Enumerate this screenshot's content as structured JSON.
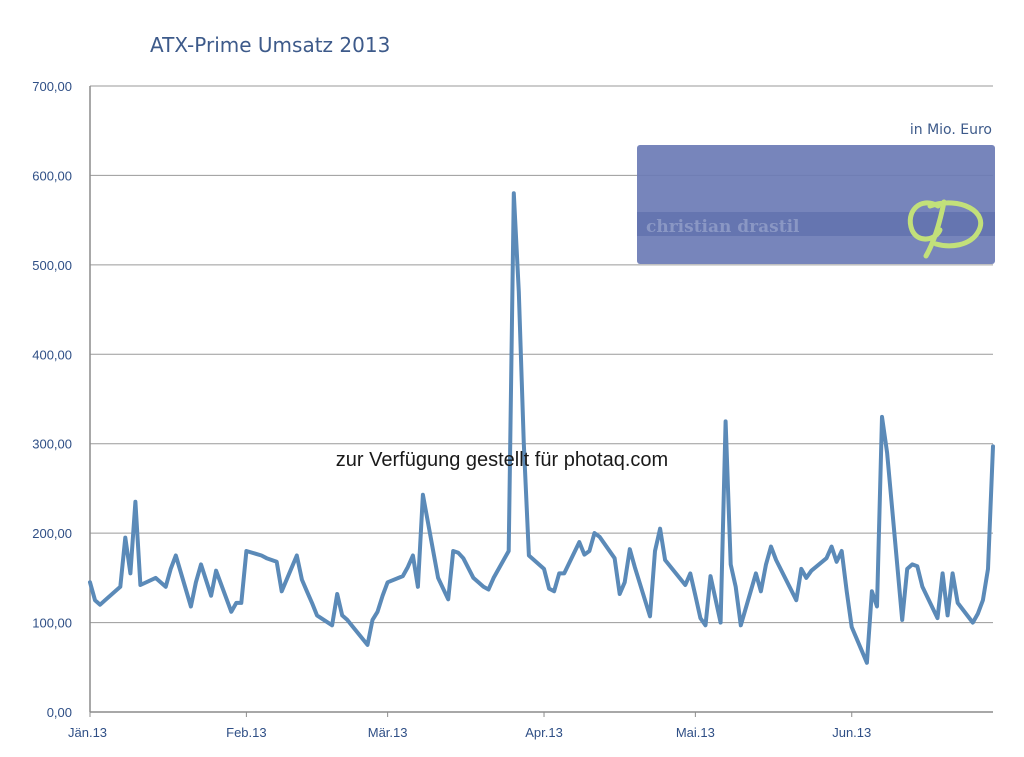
{
  "chart_data": {
    "type": "line",
    "title": "ATX-Prime Umsatz 2013",
    "unit_note": "in Mio. Euro",
    "credit": "zur Verfügung gestellt für photaq.com",
    "brand": "christian drastil",
    "ylim": [
      0,
      700
    ],
    "y_ticks": [
      "0,00",
      "100,00",
      "200,00",
      "300,00",
      "400,00",
      "500,00",
      "600,00",
      "700,00"
    ],
    "x_range": [
      0,
      179
    ],
    "x_ticks": [
      {
        "label": "Jän.13",
        "x": 0
      },
      {
        "label": "Feb.13",
        "x": 31
      },
      {
        "label": "Mär.13",
        "x": 59
      },
      {
        "label": "Apr.13",
        "x": 90
      },
      {
        "label": "Mai.13",
        "x": 120
      },
      {
        "label": "Jun.13",
        "x": 151
      }
    ],
    "grid": true,
    "colors": {
      "line": "#5b8ab8",
      "grid": "#9a9a9a",
      "axis": "#8c8c8c",
      "box": "#6b7bb5",
      "logo": "#c2e07a"
    },
    "series": [
      {
        "x": [
          0,
          1,
          2,
          3,
          6,
          7,
          8,
          9,
          10,
          13,
          15,
          16,
          17,
          20,
          21,
          22,
          24,
          25,
          28,
          29,
          30,
          31,
          34,
          35,
          37,
          38,
          41,
          42,
          43,
          44,
          45,
          48,
          49,
          50,
          51,
          52,
          55,
          56,
          57,
          58,
          59,
          62,
          63,
          64,
          65,
          66,
          69,
          71,
          72,
          73,
          74,
          76,
          77,
          78,
          79,
          80,
          83,
          84,
          85,
          86,
          87,
          90,
          91,
          92,
          93,
          94,
          97,
          98,
          99,
          100,
          101,
          104,
          105,
          106,
          107,
          108,
          111,
          112,
          113,
          114,
          118,
          119,
          120,
          121,
          122,
          123,
          125,
          126,
          127,
          128,
          129,
          132,
          133,
          134,
          135,
          136,
          140,
          141,
          142,
          143,
          146,
          147,
          148,
          149,
          150,
          151,
          154,
          155,
          156,
          157,
          158,
          161,
          162,
          163,
          164,
          165,
          168,
          169,
          170,
          171,
          172,
          175,
          176,
          177,
          178,
          179
        ],
        "y": [
          145,
          125,
          120,
          125,
          140,
          195,
          155,
          235,
          142,
          150,
          140,
          160,
          175,
          118,
          145,
          165,
          130,
          158,
          112,
          122,
          122,
          180,
          175,
          172,
          168,
          135,
          175,
          148,
          135,
          122,
          108,
          97,
          132,
          108,
          103,
          96,
          75,
          103,
          112,
          130,
          145,
          152,
          162,
          175,
          140,
          243,
          150,
          126,
          180,
          178,
          172,
          150,
          145,
          140,
          137,
          150,
          180,
          580,
          470,
          300,
          175,
          160,
          138,
          135,
          155,
          155,
          190,
          176,
          180,
          200,
          196,
          172,
          132,
          145,
          182,
          162,
          107,
          180,
          205,
          170,
          142,
          155,
          130,
          105,
          97,
          152,
          100,
          325,
          165,
          140,
          97,
          155,
          135,
          165,
          185,
          170,
          125,
          160,
          150,
          158,
          172,
          185,
          168,
          180,
          135,
          95,
          55,
          135,
          118,
          330,
          290,
          103,
          160,
          165,
          163,
          140,
          105,
          155,
          108,
          155,
          122,
          100,
          110,
          125,
          160,
          297
        ]
      }
    ]
  }
}
